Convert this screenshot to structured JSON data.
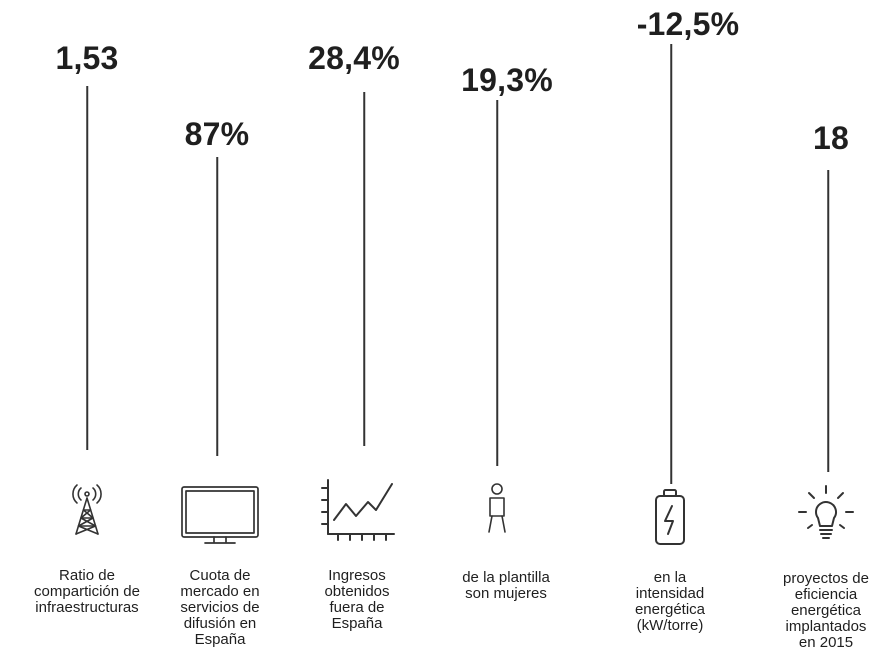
{
  "stats": [
    {
      "value": "1,53",
      "icon": "antenna-tower-icon",
      "lines": [
        "Ratio de",
        "compartición de",
        "infraestructuras"
      ]
    },
    {
      "value": "87%",
      "icon": "monitor-icon",
      "lines": [
        "Cuota de",
        "mercado en",
        "servicios de",
        "difusión en",
        "España"
      ]
    },
    {
      "value": "28,4%",
      "icon": "growth-chart-icon",
      "lines": [
        "Ingresos",
        "obtenidos",
        "fuera de",
        "España"
      ]
    },
    {
      "value": "19,3%",
      "icon": "woman-icon",
      "lines": [
        "de la plantilla",
        "son mujeres"
      ]
    },
    {
      "value": "-12,5%",
      "icon": "battery-icon",
      "lines": [
        "en la",
        "intensidad",
        "energética",
        "(kW/torre)"
      ]
    },
    {
      "value": "18",
      "icon": "lightbulb-icon",
      "lines": [
        "proyectos de",
        "eficiencia",
        "energética",
        "implantados",
        "en 2015"
      ]
    }
  ]
}
